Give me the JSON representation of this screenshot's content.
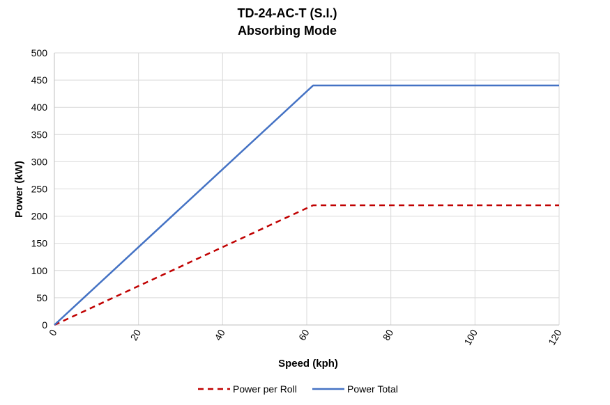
{
  "chart_data": {
    "type": "line",
    "title": [
      "TD-24-AC-T (S.I.)",
      "Absorbing Mode"
    ],
    "xlabel": "Speed (kph)",
    "ylabel": "Power (kW)",
    "xlim": [
      0,
      120
    ],
    "ylim": [
      0,
      500
    ],
    "xticks": [
      0,
      20,
      40,
      60,
      80,
      100,
      120
    ],
    "yticks": [
      0,
      50,
      100,
      150,
      200,
      250,
      300,
      350,
      400,
      450,
      500
    ],
    "grid": true,
    "legend_position": "bottom",
    "series": [
      {
        "name": "Power per Roll",
        "color": "#C00000",
        "style": "dashed",
        "x": [
          0,
          61.5,
          120
        ],
        "y": [
          0,
          220,
          220
        ]
      },
      {
        "name": "Power Total",
        "color": "#4472C4",
        "style": "solid",
        "x": [
          0,
          61.5,
          120
        ],
        "y": [
          0,
          440,
          440
        ]
      }
    ]
  }
}
